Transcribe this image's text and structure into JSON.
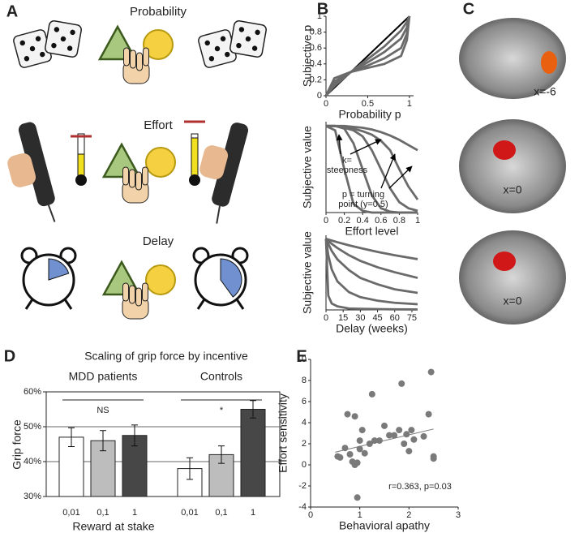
{
  "panel_labels": [
    "A",
    "B",
    "C",
    "D",
    "E"
  ],
  "panel_a": {
    "rows": [
      "Probability",
      "Effort",
      "Delay"
    ]
  },
  "panel_c": {
    "slice_labels": [
      "x=-6",
      "x=0",
      "x=0"
    ]
  },
  "chart_data": [
    {
      "type": "line",
      "ylabel": "Subjective p",
      "xlabel": "Probability p",
      "xlim": [
        0,
        1.05
      ],
      "ylim": [
        0,
        1
      ],
      "xticks": [
        0,
        0.5,
        1
      ],
      "yticks": [
        0,
        0.2,
        0.4,
        0.6,
        0.8,
        1
      ],
      "series": [
        {
          "color": "#000000",
          "x": [
            0,
            1
          ],
          "values": [
            0,
            1
          ]
        },
        {
          "color": "#6a6a6a",
          "x": [
            0,
            0.1,
            0.3,
            0.5,
            0.7,
            0.9,
            0.97,
            1
          ],
          "values": [
            0,
            0.22,
            0.3,
            0.35,
            0.4,
            0.5,
            0.7,
            1
          ]
        },
        {
          "color": "#6a6a6a",
          "x": [
            0,
            0.1,
            0.3,
            0.5,
            0.7,
            0.9,
            0.97,
            1
          ],
          "values": [
            0,
            0.18,
            0.3,
            0.38,
            0.47,
            0.6,
            0.78,
            1
          ]
        },
        {
          "color": "#6a6a6a",
          "x": [
            0,
            0.1,
            0.3,
            0.5,
            0.7,
            0.9,
            0.97,
            1
          ],
          "values": [
            0,
            0.15,
            0.3,
            0.42,
            0.55,
            0.72,
            0.86,
            1
          ]
        },
        {
          "color": "#6a6a6a",
          "x": [
            0,
            0.1,
            0.3,
            0.5,
            0.7,
            0.9,
            0.97,
            1
          ],
          "values": [
            0,
            0.12,
            0.3,
            0.46,
            0.62,
            0.82,
            0.93,
            1
          ]
        }
      ]
    },
    {
      "type": "line",
      "ylabel": "Subjective value",
      "xlabel": "Effort level",
      "xlim": [
        0,
        1
      ],
      "ylim": [
        0,
        1.05
      ],
      "xticks": [
        0,
        0.2,
        0.4,
        0.6,
        0.8,
        1
      ],
      "annotations": [
        "k=",
        "steepness",
        "p = turning",
        "point (y=0.5)"
      ],
      "series": [
        {
          "color": "#6a6a6a",
          "x": [
            0,
            0.1,
            0.2,
            0.3,
            0.4,
            0.5,
            0.6,
            0.7,
            0.8,
            0.9,
            1
          ],
          "values": [
            1,
            0.95,
            0.5,
            0.1,
            0.02,
            0,
            0,
            0,
            0,
            0,
            0
          ]
        },
        {
          "color": "#6a6a6a",
          "x": [
            0,
            0.1,
            0.2,
            0.3,
            0.4,
            0.5,
            0.6,
            0.7,
            0.8,
            0.9,
            1
          ],
          "values": [
            1,
            1,
            0.97,
            0.8,
            0.5,
            0.2,
            0.05,
            0.01,
            0,
            0,
            0
          ]
        },
        {
          "color": "#6a6a6a",
          "x": [
            0,
            0.1,
            0.2,
            0.3,
            0.4,
            0.5,
            0.6,
            0.7,
            0.8,
            0.9,
            1
          ],
          "values": [
            1,
            1,
            0.98,
            0.95,
            0.88,
            0.72,
            0.5,
            0.28,
            0.12,
            0.05,
            0.02
          ]
        },
        {
          "color": "#6a6a6a",
          "x": [
            0,
            0.1,
            0.2,
            0.3,
            0.4,
            0.5,
            0.6,
            0.7,
            0.8,
            0.9,
            1
          ],
          "values": [
            1,
            1,
            0.99,
            0.97,
            0.94,
            0.9,
            0.83,
            0.72,
            0.5,
            0.3,
            0.15
          ]
        },
        {
          "color": "#6a6a6a",
          "x": [
            0,
            0.1,
            0.2,
            0.3,
            0.4,
            0.5,
            0.6,
            0.7,
            0.8,
            0.9,
            1
          ],
          "values": [
            1,
            1,
            1,
            0.99,
            0.98,
            0.96,
            0.93,
            0.89,
            0.84,
            0.78,
            0.72
          ]
        }
      ]
    },
    {
      "type": "line",
      "ylabel": "Subjective value",
      "xlabel": "Delay (weeks)",
      "xlim": [
        0,
        80
      ],
      "ylim": [
        0,
        1.05
      ],
      "xticks": [
        0,
        15,
        30,
        45,
        60,
        75
      ],
      "series": [
        {
          "color": "#6a6a6a",
          "x": [
            0,
            2,
            5,
            10,
            20,
            30,
            45,
            60,
            80
          ],
          "values": [
            1,
            0.99,
            0.976,
            0.952,
            0.909,
            0.87,
            0.816,
            0.769,
            0.714
          ]
        },
        {
          "color": "#6a6a6a",
          "x": [
            0,
            2,
            5,
            10,
            20,
            30,
            45,
            60,
            80
          ],
          "values": [
            1,
            0.97,
            0.93,
            0.87,
            0.77,
            0.69,
            0.6,
            0.53,
            0.45
          ]
        },
        {
          "color": "#6a6a6a",
          "x": [
            0,
            2,
            5,
            10,
            20,
            30,
            45,
            60,
            80
          ],
          "values": [
            1,
            0.93,
            0.83,
            0.71,
            0.56,
            0.45,
            0.36,
            0.29,
            0.24
          ]
        },
        {
          "color": "#6a6a6a",
          "x": [
            0,
            2,
            5,
            10,
            20,
            30,
            45,
            60,
            80
          ],
          "values": [
            1,
            0.77,
            0.57,
            0.4,
            0.25,
            0.18,
            0.13,
            0.1,
            0.08
          ]
        },
        {
          "color": "#6a6a6a",
          "x": [
            0,
            2,
            5,
            10,
            20,
            30,
            45,
            60,
            80
          ],
          "values": [
            1,
            0.2,
            0.09,
            0.05,
            0.02,
            0.016,
            0.011,
            0.008,
            0.006
          ]
        }
      ]
    },
    {
      "type": "grouped_bar",
      "title": "Scaling of grip force by incentive",
      "ylabel": "Grip force",
      "xlabel": "Reward at stake",
      "categories": [
        "0,01",
        "0,1",
        "1"
      ],
      "colors": [
        "#ffffff",
        "#bdbdbd",
        "#474747"
      ],
      "groups": [
        {
          "name": "MDD patients",
          "values": [
            47,
            46,
            47.5
          ],
          "errors": [
            2.7,
            2.9,
            3
          ],
          "significance": "NS"
        },
        {
          "name": "Controls",
          "values": [
            38,
            42,
            55
          ],
          "errors": [
            3.1,
            2.5,
            2.5
          ],
          "significance": "*"
        }
      ],
      "ylim": [
        30,
        60
      ],
      "yticks": [
        {
          "value": 30,
          "label": "30%"
        },
        {
          "value": 40,
          "label": "40%"
        },
        {
          "value": 50,
          "label": "50%"
        },
        {
          "value": 60,
          "label": "60%"
        }
      ],
      "grid": true
    },
    {
      "type": "scatter",
      "ylabel": "Effort sensitivity",
      "xlabel": "Behavioral apathy",
      "annotation": "r=0.363, p=0.03",
      "color": "#7a7a7a",
      "xlim": [
        0,
        3
      ],
      "ylim": [
        -4,
        10
      ],
      "xticks": [
        0,
        1,
        2,
        3
      ],
      "yticks": [
        -4,
        -2,
        0,
        2,
        4,
        6,
        8,
        10
      ],
      "x": [
        0.55,
        0.6,
        0.7,
        0.75,
        0.8,
        0.85,
        0.9,
        0.95,
        0.9,
        0.95,
        1.0,
        1.0,
        1.05,
        1.1,
        1.2,
        1.25,
        1.3,
        1.4,
        1.5,
        1.6,
        1.7,
        1.8,
        1.85,
        1.9,
        1.95,
        2.0,
        2.05,
        2.1,
        2.3,
        2.4,
        2.45,
        2.5,
        2.5
      ],
      "values": [
        0.8,
        0.7,
        1.6,
        4.8,
        1.0,
        0.3,
        0.0,
        0.2,
        4.6,
        -3.1,
        2.3,
        1.5,
        3.3,
        1.1,
        2.0,
        6.7,
        2.3,
        2.3,
        3.7,
        2.8,
        2.8,
        3.3,
        7.7,
        2.0,
        2.9,
        1.3,
        3.3,
        2.4,
        2.7,
        4.8,
        8.8,
        0.6,
        0.8
      ],
      "fit_line": {
        "x": [
          0.5,
          2.5
        ],
        "values": [
          1.2,
          3.4
        ]
      }
    }
  ]
}
